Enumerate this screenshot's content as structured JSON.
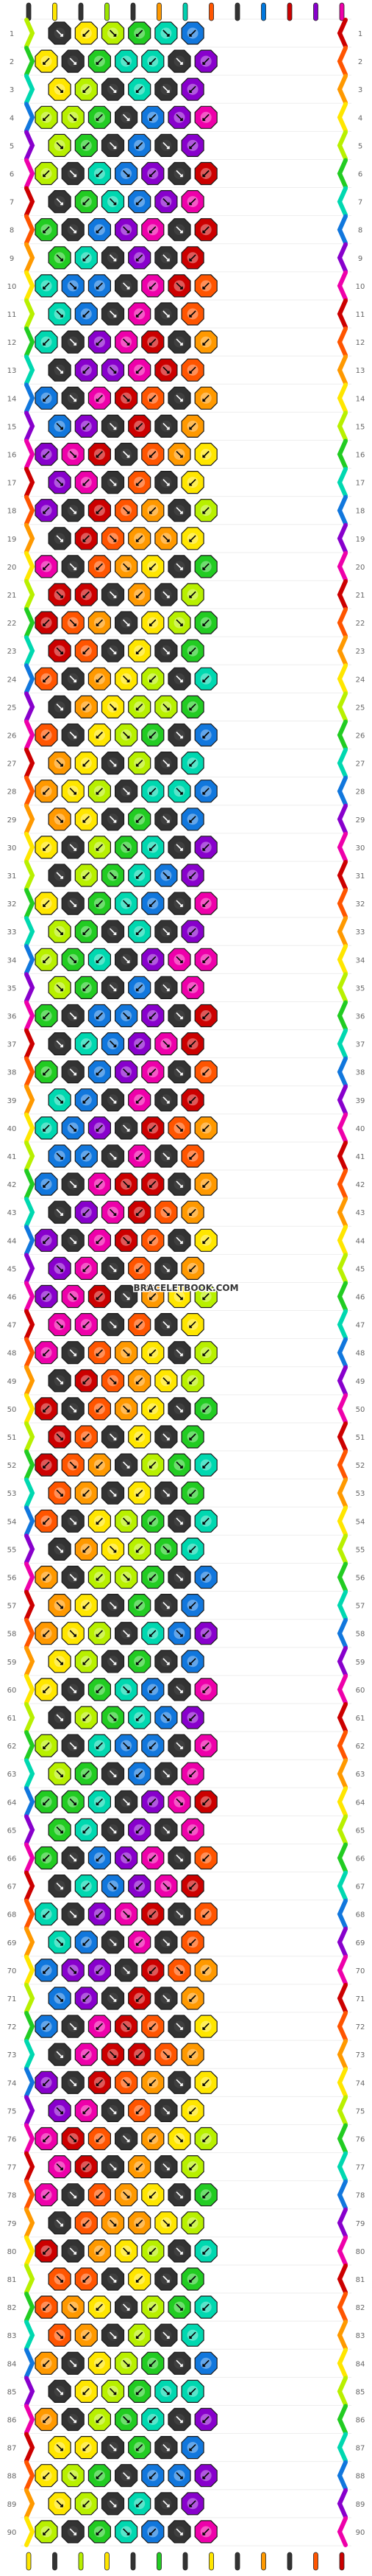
{
  "watermark": "BRACELETBOOK.COM",
  "string_colors": [
    "#333333",
    "#ffe600",
    "#333333",
    "#9be500",
    "#333333",
    "#ff9900",
    "#00d0b0",
    "#ff5500",
    "#333333",
    "#0077dd",
    "#cc0000",
    "#8800cc",
    "#ee00aa"
  ],
  "row_count": 90,
  "row_numbers": [
    "1",
    "2",
    "3",
    "4",
    "5",
    "6",
    "7",
    "8",
    "9",
    "10",
    "11",
    "12",
    "13",
    "14",
    "15",
    "16",
    "17",
    "18",
    "19",
    "20",
    "21",
    "22",
    "23",
    "24",
    "25",
    "26",
    "27",
    "28",
    "29",
    "30",
    "31",
    "32",
    "33",
    "34",
    "35",
    "36",
    "37",
    "38",
    "39",
    "40",
    "41",
    "42",
    "43",
    "44",
    "45",
    "46",
    "47",
    "48",
    "49",
    "50",
    "51",
    "52",
    "53",
    "54",
    "55",
    "56",
    "57",
    "58",
    "59",
    "60",
    "61",
    "62",
    "63",
    "64",
    "65",
    "66",
    "67",
    "68",
    "69",
    "70",
    "71",
    "72",
    "73",
    "74",
    "75",
    "76",
    "77",
    "78",
    "79",
    "80",
    "81",
    "82",
    "83",
    "84",
    "85",
    "86",
    "87",
    "88",
    "89",
    "90"
  ],
  "palette": {
    "black": "#333333",
    "yellow": "#ffe600",
    "lime": "#b8f000",
    "green": "#22cc22",
    "teal": "#00d8b0",
    "blue": "#1177dd",
    "purple": "#8800cc",
    "magenta": "#ee00aa",
    "red": "#cc0000",
    "orange_red": "#ff5500",
    "orange": "#ff9900",
    "white": "#ffffff"
  }
}
